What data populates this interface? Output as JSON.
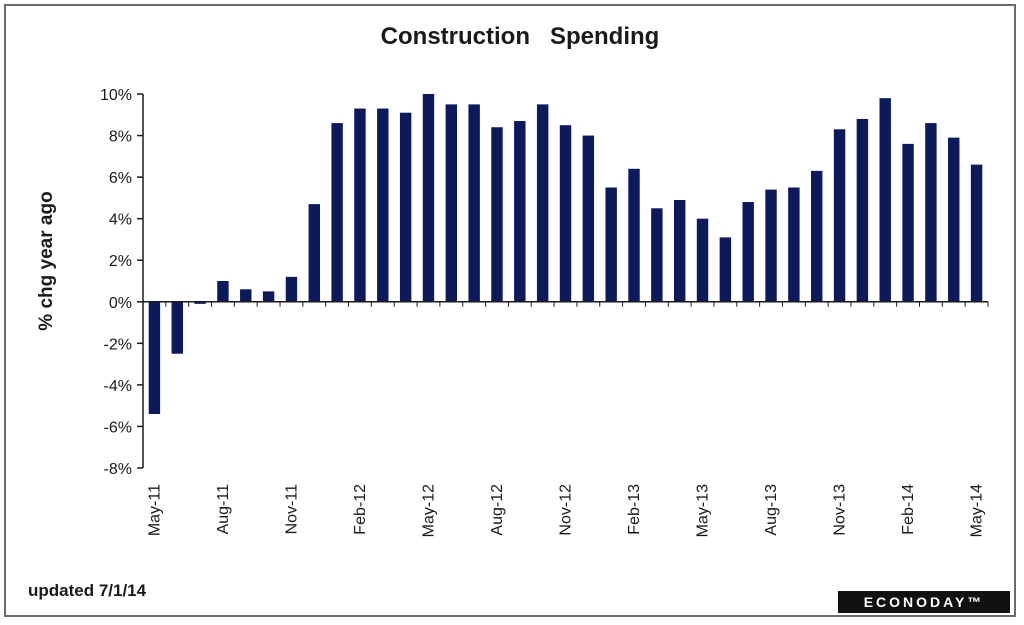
{
  "chart_data": {
    "type": "bar",
    "title": "Construction   Spending",
    "ylabel": "% chg year ago",
    "xlabel": "",
    "ylim": [
      -8,
      10
    ],
    "yticks": [
      10,
      8,
      6,
      4,
      2,
      0,
      -2,
      -4,
      -6,
      -8
    ],
    "ytick_labels": [
      "10%",
      "8%",
      "6%",
      "4%",
      "2%",
      "0%",
      "-2%",
      "-4%",
      "-6%",
      "-8%"
    ],
    "grid": false,
    "categories": [
      "May-11",
      "Jun-11",
      "Jul-11",
      "Aug-11",
      "Sep-11",
      "Oct-11",
      "Nov-11",
      "Dec-11",
      "Jan-12",
      "Feb-12",
      "Mar-12",
      "Apr-12",
      "May-12",
      "Jun-12",
      "Jul-12",
      "Aug-12",
      "Sep-12",
      "Oct-12",
      "Nov-12",
      "Dec-12",
      "Jan-13",
      "Feb-13",
      "Mar-13",
      "Apr-13",
      "May-13",
      "Jun-13",
      "Jul-13",
      "Aug-13",
      "Sep-13",
      "Oct-13",
      "Nov-13",
      "Dec-13",
      "Jan-14",
      "Feb-14",
      "Mar-14",
      "Apr-14",
      "May-14"
    ],
    "xtick_labels": [
      {
        "index": 0,
        "label": "May-11"
      },
      {
        "index": 3,
        "label": "Aug-11"
      },
      {
        "index": 6,
        "label": "Nov-11"
      },
      {
        "index": 9,
        "label": "Feb-12"
      },
      {
        "index": 12,
        "label": "May-12"
      },
      {
        "index": 15,
        "label": "Aug-12"
      },
      {
        "index": 18,
        "label": "Nov-12"
      },
      {
        "index": 21,
        "label": "Feb-13"
      },
      {
        "index": 24,
        "label": "May-13"
      },
      {
        "index": 27,
        "label": "Aug-13"
      },
      {
        "index": 30,
        "label": "Nov-13"
      },
      {
        "index": 33,
        "label": "Feb-14"
      },
      {
        "index": 36,
        "label": "May-14"
      }
    ],
    "values": [
      -5.4,
      -2.5,
      -0.1,
      1.0,
      0.6,
      0.5,
      1.2,
      4.7,
      8.6,
      9.3,
      9.3,
      9.1,
      10.0,
      9.5,
      9.5,
      8.4,
      8.7,
      9.5,
      8.5,
      8.0,
      5.5,
      6.4,
      4.5,
      4.9,
      4.0,
      3.1,
      4.8,
      5.4,
      5.5,
      6.3,
      8.3,
      8.8,
      9.8,
      7.6,
      8.6,
      7.9,
      6.6
    ],
    "bar_color": "#0c1a5c"
  },
  "footer": {
    "updated": "updated 7/1/14"
  },
  "logo": {
    "text": "ECONODAY™"
  }
}
